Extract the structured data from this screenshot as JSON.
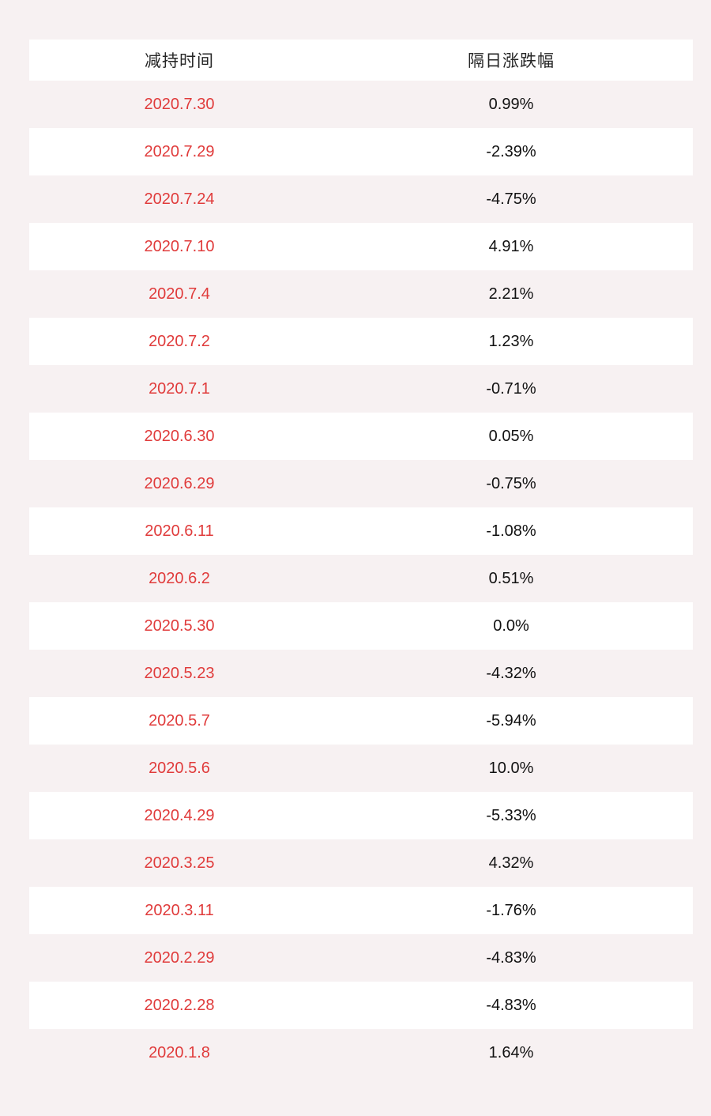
{
  "page": {
    "background_color": "#f7f1f2",
    "row_alt_color": "#ffffff",
    "date_text_color": "#e03b3b",
    "value_text_color": "#111111"
  },
  "table": {
    "header": {
      "date_label": "减持时间",
      "change_label": "隔日涨跌幅"
    },
    "rows": [
      {
        "date": "2020.7.30",
        "change": "0.99%"
      },
      {
        "date": "2020.7.29",
        "change": "-2.39%"
      },
      {
        "date": "2020.7.24",
        "change": "-4.75%"
      },
      {
        "date": "2020.7.10",
        "change": "4.91%"
      },
      {
        "date": "2020.7.4",
        "change": "2.21%"
      },
      {
        "date": "2020.7.2",
        "change": "1.23%"
      },
      {
        "date": "2020.7.1",
        "change": "-0.71%"
      },
      {
        "date": "2020.6.30",
        "change": "0.05%"
      },
      {
        "date": "2020.6.29",
        "change": "-0.75%"
      },
      {
        "date": "2020.6.11",
        "change": "-1.08%"
      },
      {
        "date": "2020.6.2",
        "change": "0.51%"
      },
      {
        "date": "2020.5.30",
        "change": "0.0%"
      },
      {
        "date": "2020.5.23",
        "change": "-4.32%"
      },
      {
        "date": "2020.5.7",
        "change": "-5.94%"
      },
      {
        "date": "2020.5.6",
        "change": "10.0%"
      },
      {
        "date": "2020.4.29",
        "change": "-5.33%"
      },
      {
        "date": "2020.3.25",
        "change": "4.32%"
      },
      {
        "date": "2020.3.11",
        "change": "-1.76%"
      },
      {
        "date": "2020.2.29",
        "change": "-4.83%"
      },
      {
        "date": "2020.2.28",
        "change": "-4.83%"
      },
      {
        "date": "2020.1.8",
        "change": "1.64%"
      }
    ]
  },
  "chart_data": {
    "type": "table",
    "title": "",
    "columns": [
      "减持时间",
      "隔日涨跌幅"
    ],
    "rows": [
      [
        "2020.7.30",
        "0.99%"
      ],
      [
        "2020.7.29",
        "-2.39%"
      ],
      [
        "2020.7.24",
        "-4.75%"
      ],
      [
        "2020.7.10",
        "4.91%"
      ],
      [
        "2020.7.4",
        "2.21%"
      ],
      [
        "2020.7.2",
        "1.23%"
      ],
      [
        "2020.7.1",
        "-0.71%"
      ],
      [
        "2020.6.30",
        "0.05%"
      ],
      [
        "2020.6.29",
        "-0.75%"
      ],
      [
        "2020.6.11",
        "-1.08%"
      ],
      [
        "2020.6.2",
        "0.51%"
      ],
      [
        "2020.5.30",
        "0.0%"
      ],
      [
        "2020.5.23",
        "-4.32%"
      ],
      [
        "2020.5.7",
        "-5.94%"
      ],
      [
        "2020.5.6",
        "10.0%"
      ],
      [
        "2020.4.29",
        "-5.33%"
      ],
      [
        "2020.3.25",
        "4.32%"
      ],
      [
        "2020.3.11",
        "-1.76%"
      ],
      [
        "2020.2.29",
        "-4.83%"
      ],
      [
        "2020.2.28",
        "-4.83%"
      ],
      [
        "2020.1.8",
        "1.64%"
      ]
    ],
    "change_values_numeric_pct": [
      0.99,
      -2.39,
      -4.75,
      4.91,
      2.21,
      1.23,
      -0.71,
      0.05,
      -0.75,
      -1.08,
      0.51,
      0.0,
      -4.32,
      -5.94,
      10.0,
      -5.33,
      4.32,
      -1.76,
      -4.83,
      -4.83,
      1.64
    ]
  }
}
